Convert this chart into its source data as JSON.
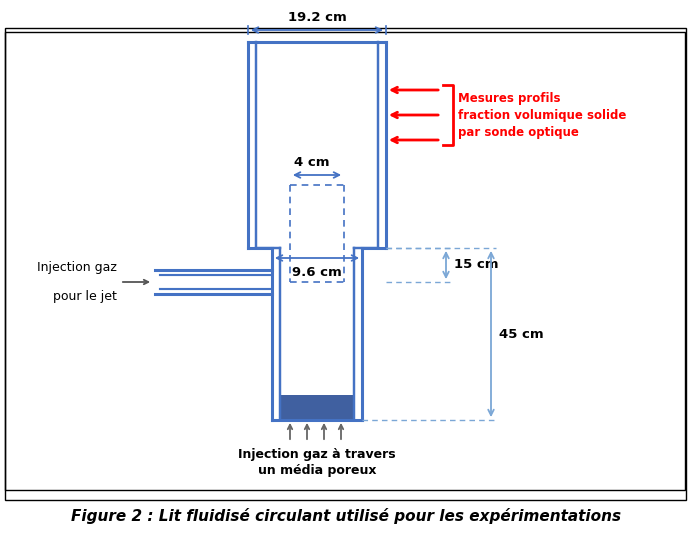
{
  "bg_color": "#ffffff",
  "border_color": "#000000",
  "blue": "#4472C4",
  "blue_light": "#7090D0",
  "blue_dim": "#7BA7D6",
  "bed_color": "#4060A0",
  "red_color": "#FF0000",
  "dark_arrow": "#555555",
  "title": "Figure 2 : Lit fluidisé circulant utilisé pour les expérimentations",
  "label_19cm": "19.2 cm",
  "label_4cm": "4 cm",
  "label_15cm": "15 cm",
  "label_45cm": "45 cm",
  "label_9_6cm": "9.6 cm",
  "label_inj_bot_1": "Injection gaz à travers",
  "label_inj_bot_2": "un média poreux",
  "label_jet_1": "Injection gaz",
  "label_jet_2": "pour le jet",
  "label_mesures": "Mesures profils\nfraction volumique solide\npar sonde optique",
  "fig_width": 6.91,
  "fig_height": 5.42
}
